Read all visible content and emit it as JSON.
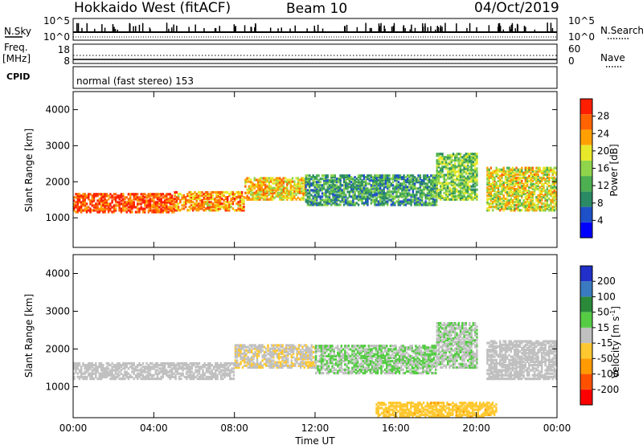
{
  "header": {
    "radar": "Hokkaido West (fitACF)",
    "beam": "Beam 10",
    "date": "04/Oct/2019"
  },
  "noise_panel": {
    "label": "N.Sky",
    "right_label": "N.Search",
    "left_ticks": [
      "10^5",
      "10^0"
    ],
    "right_ticks": [
      "10^5",
      "10^0"
    ]
  },
  "freq_panel": {
    "label_line1": "Freq.",
    "label_line2": "[MHz]",
    "right_label": "Nave",
    "left_ticks": [
      "18",
      "8"
    ],
    "right_ticks": [
      "60",
      "0"
    ]
  },
  "cpid_panel": {
    "label": "CPID",
    "text": "normal (fast stereo) 153"
  },
  "chart_data": [
    {
      "type": "heatmap",
      "name": "power",
      "ylabel": "Slant Range [km]",
      "xlabel": "Time UT",
      "xlim": [
        "00:00",
        "24:00"
      ],
      "ylim": [
        180,
        4500
      ],
      "y_ticks": [
        "1000",
        "2000",
        "3000",
        "4000"
      ],
      "x_ticks": [
        "00:00",
        "04:00",
        "08:00",
        "12:00",
        "16:00",
        "20:00",
        "00:00"
      ],
      "colorbar_label": "Power [dB]",
      "colorbar_ticks": [
        "4",
        "8",
        "12",
        "16",
        "20",
        "24",
        "28"
      ],
      "colorbar_range": [
        0,
        30
      ],
      "colorbar_colors": [
        "#0000ff",
        "#1e50c8",
        "#2a8a64",
        "#4caf50",
        "#8fd44a",
        "#e8e82a",
        "#ffa000",
        "#ff6400",
        "#ff1e00"
      ],
      "echo_bands": [
        {
          "t": [
            0,
            5
          ],
          "r": [
            1150,
            1650
          ],
          "db": 26
        },
        {
          "t": [
            5,
            8.5
          ],
          "r": [
            1200,
            1700
          ],
          "db": 22
        },
        {
          "t": [
            8.5,
            11.5
          ],
          "r": [
            1500,
            2100
          ],
          "db": 20
        },
        {
          "t": [
            11.5,
            18
          ],
          "r": [
            1350,
            2200
          ],
          "db": 10
        },
        {
          "t": [
            18,
            20
          ],
          "r": [
            1500,
            2800
          ],
          "db": 14
        },
        {
          "t": [
            20.5,
            24
          ],
          "r": [
            1200,
            2400
          ],
          "db": 18
        }
      ]
    },
    {
      "type": "heatmap",
      "name": "velocity",
      "ylabel": "Slant Range [km]",
      "xlabel": "Time UT",
      "xlim": [
        "00:00",
        "24:00"
      ],
      "ylim": [
        180,
        4500
      ],
      "y_ticks": [
        "1000",
        "2000",
        "3000",
        "4000"
      ],
      "x_ticks": [
        "00:00",
        "04:00",
        "08:00",
        "12:00",
        "16:00",
        "20:00",
        "00:00"
      ],
      "colorbar_label": "Velocity [m s",
      "colorbar_label_sup": "-1",
      "colorbar_label_end": "]",
      "colorbar_ticks": [
        "200",
        "100",
        "50",
        "15",
        "-15",
        "-50",
        "-100",
        "-200"
      ],
      "colorbar_range": [
        -250,
        250
      ],
      "colorbar_colors": [
        "#2030c8",
        "#3a7ac0",
        "#2a8a3a",
        "#55cc44",
        "#c0c0c0",
        "#ffc830",
        "#ff9a00",
        "#ff5000",
        "#ff0000"
      ],
      "echo_bands": [
        {
          "t": [
            0,
            8
          ],
          "r": [
            1200,
            1650
          ],
          "v": 0
        },
        {
          "t": [
            8,
            12
          ],
          "r": [
            1500,
            2100
          ],
          "v": -20
        },
        {
          "t": [
            12,
            18
          ],
          "r": [
            1350,
            2100
          ],
          "v": 30
        },
        {
          "t": [
            15,
            21
          ],
          "r": [
            200,
            600
          ],
          "v": -60
        },
        {
          "t": [
            18,
            20
          ],
          "r": [
            1500,
            2700
          ],
          "v": 20
        },
        {
          "t": [
            20.5,
            24
          ],
          "r": [
            1200,
            2200
          ],
          "v": 0
        }
      ]
    }
  ]
}
